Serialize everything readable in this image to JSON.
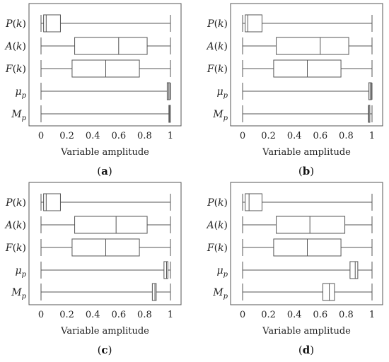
{
  "chart_data": [
    {
      "type": "boxplot",
      "panel_label": "a",
      "xlabel": "Variable amplitude",
      "xticks": [
        "0",
        "0.2",
        "0.4",
        "0.6",
        "0.8",
        "1"
      ],
      "xlim": [
        0,
        1
      ],
      "series": [
        {
          "name": "P(k)",
          "min": 0.0,
          "q1": 0.02,
          "median": 0.04,
          "q3": 0.15,
          "max": 1.0
        },
        {
          "name": "A(k)",
          "min": 0.0,
          "q1": 0.26,
          "median": 0.6,
          "q3": 0.82,
          "max": 1.0
        },
        {
          "name": "F(k)",
          "min": 0.0,
          "q1": 0.24,
          "median": 0.5,
          "q3": 0.76,
          "max": 1.0
        },
        {
          "name": "μ_p",
          "min": 0.0,
          "q1": 0.975,
          "median": 0.985,
          "q3": 0.995,
          "max": 1.0
        },
        {
          "name": "M_p",
          "min": 0.0,
          "q1": 0.988,
          "median": 0.992,
          "q3": 0.996,
          "max": 1.0
        }
      ]
    },
    {
      "type": "boxplot",
      "panel_label": "b",
      "xlabel": "Variable amplitude",
      "xticks": [
        "0",
        "0.2",
        "0.4",
        "0.6",
        "0.8",
        "1"
      ],
      "xlim": [
        0,
        1
      ],
      "series": [
        {
          "name": "P(k)",
          "min": 0.0,
          "q1": 0.02,
          "median": 0.04,
          "q3": 0.15,
          "max": 1.0
        },
        {
          "name": "A(k)",
          "min": 0.0,
          "q1": 0.26,
          "median": 0.6,
          "q3": 0.82,
          "max": 1.0
        },
        {
          "name": "F(k)",
          "min": 0.0,
          "q1": 0.24,
          "median": 0.5,
          "q3": 0.76,
          "max": 1.0
        },
        {
          "name": "μ_p",
          "min": 0.0,
          "q1": 0.975,
          "median": 0.985,
          "q3": 0.995,
          "max": 1.0
        },
        {
          "name": "M_p",
          "min": 0.0,
          "q1": 0.972,
          "median": 0.976,
          "q3": 0.98,
          "max": 1.0
        }
      ]
    },
    {
      "type": "boxplot",
      "panel_label": "c",
      "xlabel": "Variable amplitude",
      "xticks": [
        "0",
        "0.2",
        "0.4",
        "0.6",
        "0.8",
        "1"
      ],
      "xlim": [
        0,
        1
      ],
      "series": [
        {
          "name": "P(k)",
          "min": 0.0,
          "q1": 0.02,
          "median": 0.04,
          "q3": 0.15,
          "max": 1.0
        },
        {
          "name": "A(k)",
          "min": 0.0,
          "q1": 0.26,
          "median": 0.58,
          "q3": 0.82,
          "max": 1.0
        },
        {
          "name": "F(k)",
          "min": 0.0,
          "q1": 0.24,
          "median": 0.5,
          "q3": 0.76,
          "max": 1.0
        },
        {
          "name": "μ_p",
          "min": 0.0,
          "q1": 0.95,
          "median": 0.97,
          "q3": 0.98,
          "max": 1.0
        },
        {
          "name": "M_p",
          "min": 0.0,
          "q1": 0.86,
          "median": 0.88,
          "q3": 0.89,
          "max": 1.0
        }
      ]
    },
    {
      "type": "boxplot",
      "panel_label": "d",
      "xlabel": "Variable amplitude",
      "xticks": [
        "0",
        "0.2",
        "0.4",
        "0.6",
        "0.8",
        "1"
      ],
      "xlim": [
        0,
        1
      ],
      "series": [
        {
          "name": "P(k)",
          "min": 0.0,
          "q1": 0.02,
          "median": 0.05,
          "q3": 0.15,
          "max": 1.0
        },
        {
          "name": "A(k)",
          "min": 0.0,
          "q1": 0.26,
          "median": 0.52,
          "q3": 0.79,
          "max": 1.0
        },
        {
          "name": "F(k)",
          "min": 0.0,
          "q1": 0.24,
          "median": 0.5,
          "q3": 0.76,
          "max": 1.0
        },
        {
          "name": "μ_p",
          "min": 0.0,
          "q1": 0.83,
          "median": 0.87,
          "q3": 0.89,
          "max": 1.0
        },
        {
          "name": "M_p",
          "min": 0.0,
          "q1": 0.62,
          "median": 0.67,
          "q3": 0.71,
          "max": 1.0
        }
      ]
    }
  ]
}
